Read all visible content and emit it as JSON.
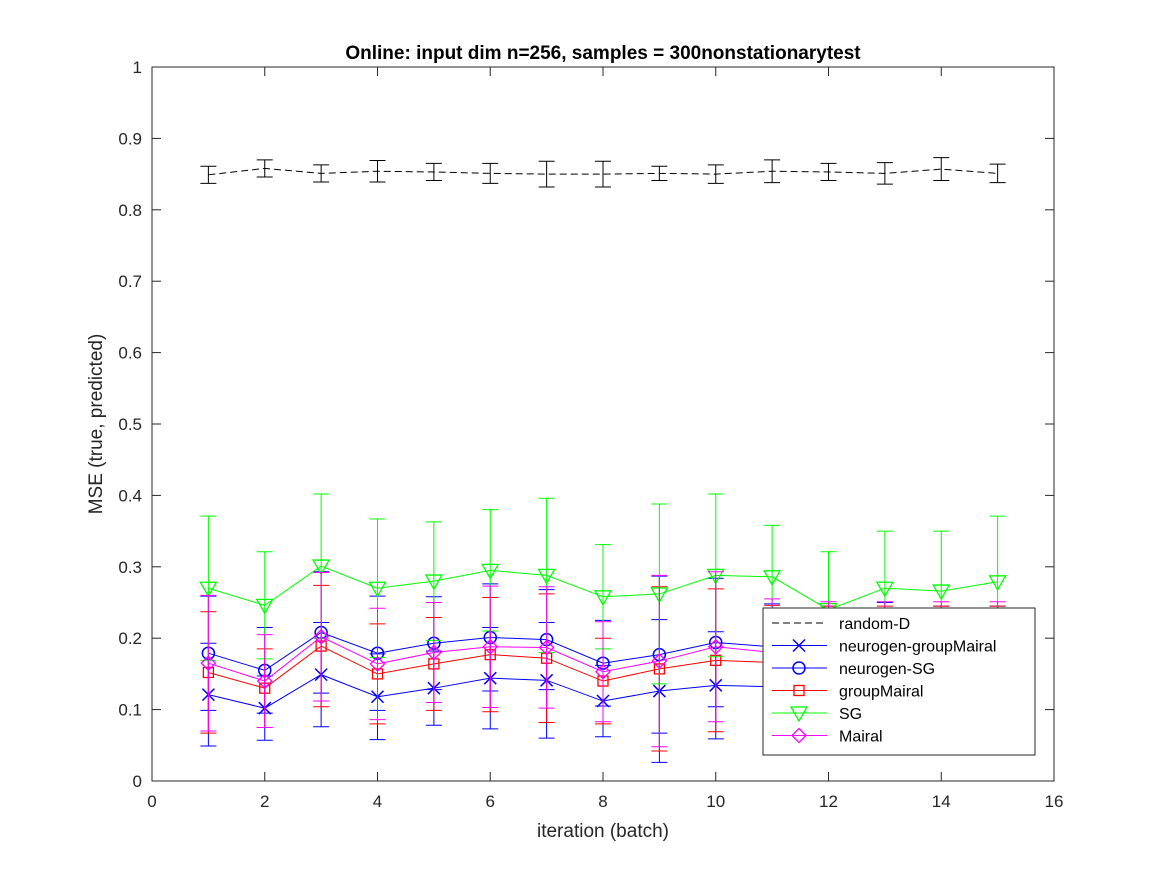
{
  "chart_data": {
    "type": "line",
    "title": "Online:  input dim n=256, samples = 300nonstationarytest",
    "xlabel": "iteration (batch)",
    "ylabel": "MSE (true, predicted)",
    "xlim": [
      0,
      16
    ],
    "ylim": [
      0,
      1
    ],
    "xticks": [
      0,
      2,
      4,
      6,
      8,
      10,
      12,
      14,
      16
    ],
    "yticks": [
      0,
      0.1,
      0.2,
      0.3,
      0.4,
      0.5,
      0.6,
      0.7,
      0.8,
      0.9,
      1
    ],
    "ytick_labels": [
      "0",
      "0.1",
      "0.2",
      "0.3",
      "0.4",
      "0.5",
      "0.6",
      "0.7",
      "0.8",
      "0.9",
      "1"
    ],
    "legend_position": "bottom-right",
    "grid": false,
    "x": [
      1,
      2,
      3,
      4,
      5,
      6,
      7,
      8,
      9,
      10,
      11,
      12,
      13,
      14,
      15
    ],
    "series": [
      {
        "name": "random-D",
        "color": "#000000",
        "line": "dashed",
        "marker": "none",
        "values": [
          0.849,
          0.858,
          0.851,
          0.854,
          0.853,
          0.851,
          0.85,
          0.85,
          0.851,
          0.85,
          0.854,
          0.853,
          0.851,
          0.857,
          0.851
        ],
        "errors": [
          0.012,
          0.012,
          0.012,
          0.015,
          0.012,
          0.014,
          0.018,
          0.018,
          0.01,
          0.013,
          0.016,
          0.012,
          0.015,
          0.016,
          0.013
        ]
      },
      {
        "name": "neurogen-groupMairal",
        "color": "#0000ff",
        "line": "solid",
        "marker": "x",
        "values": [
          0.121,
          0.102,
          0.149,
          0.118,
          0.13,
          0.144,
          0.141,
          0.112,
          0.126,
          0.134,
          0.132,
          0.13,
          0.13,
          0.13,
          0.13
        ],
        "errors": [
          0.072,
          0.045,
          0.073,
          0.06,
          0.052,
          0.071,
          0.081,
          0.05,
          0.1,
          0.075,
          0.06,
          0.06,
          0.06,
          0.06,
          0.06
        ]
      },
      {
        "name": "neurogen-SG",
        "color": "#0000ff",
        "line": "solid",
        "marker": "circle",
        "values": [
          0.179,
          0.155,
          0.208,
          0.179,
          0.193,
          0.201,
          0.198,
          0.165,
          0.177,
          0.194,
          0.188,
          0.185,
          0.185,
          0.185,
          0.185
        ],
        "errors": [
          0.08,
          0.06,
          0.085,
          0.08,
          0.065,
          0.075,
          0.07,
          0.06,
          0.11,
          0.09,
          0.06,
          0.06,
          0.065,
          0.06,
          0.06
        ]
      },
      {
        "name": "groupMairal",
        "color": "#ff0000",
        "line": "solid",
        "marker": "square",
        "values": [
          0.152,
          0.13,
          0.189,
          0.15,
          0.164,
          0.177,
          0.172,
          0.14,
          0.157,
          0.169,
          0.166,
          0.165,
          0.165,
          0.165,
          0.165
        ],
        "errors": [
          0.085,
          0.055,
          0.085,
          0.07,
          0.065,
          0.08,
          0.09,
          0.06,
          0.115,
          0.1,
          0.08,
          0.08,
          0.08,
          0.08,
          0.08
        ]
      },
      {
        "name": "SG",
        "color": "#00ff00",
        "line": "solid",
        "marker": "triangle-down",
        "values": [
          0.27,
          0.246,
          0.301,
          0.27,
          0.28,
          0.295,
          0.288,
          0.258,
          0.262,
          0.288,
          0.286,
          0.24,
          0.27,
          0.266,
          0.279
        ],
        "errors": [
          0.101,
          0.075,
          0.101,
          0.097,
          0.083,
          0.085,
          0.108,
          0.073,
          0.126,
          0.114,
          0.072,
          0.081,
          0.08,
          0.084,
          0.092
        ]
      },
      {
        "name": "Mairal",
        "color": "#ff00ff",
        "line": "solid",
        "marker": "diamond",
        "values": [
          0.165,
          0.14,
          0.202,
          0.164,
          0.18,
          0.188,
          0.187,
          0.153,
          0.168,
          0.188,
          0.18,
          0.176,
          0.176,
          0.176,
          0.176
        ],
        "errors": [
          0.095,
          0.065,
          0.09,
          0.078,
          0.07,
          0.085,
          0.085,
          0.07,
          0.12,
          0.105,
          0.075,
          0.075,
          0.075,
          0.075,
          0.075
        ]
      }
    ]
  }
}
